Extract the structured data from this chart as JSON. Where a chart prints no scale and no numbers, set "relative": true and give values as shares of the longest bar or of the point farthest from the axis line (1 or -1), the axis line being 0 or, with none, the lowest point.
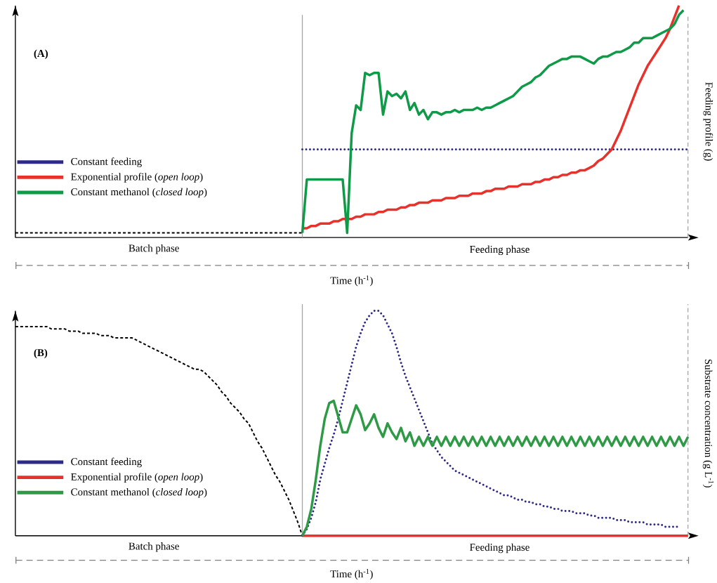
{
  "chart_data": [
    {
      "type": "line",
      "relative": true,
      "legend": "left",
      "xlabel": "Time (h$^{-1}$)",
      "ylabel": "Feeding profile (g)",
      "annotations": [
        "(A)",
        "Batch phase",
        "Feeding phase"
      ],
      "categories": [
        null,
        null,
        null,
        null,
        null,
        null,
        null,
        null,
        null,
        null,
        null,
        null,
        null,
        null,
        null,
        null,
        null,
        null,
        null,
        null,
        null,
        null,
        null,
        null,
        null,
        null,
        null,
        null,
        null,
        null,
        null,
        null,
        null,
        null,
        null,
        null,
        null,
        null,
        null,
        null,
        null,
        null,
        null,
        null,
        null,
        null,
        null,
        null,
        null,
        null,
        null,
        null,
        null,
        null,
        null,
        null,
        null,
        null,
        null,
        null,
        null,
        null,
        null,
        null,
        null,
        null,
        null,
        null,
        null,
        null,
        null,
        null,
        null,
        null,
        null,
        null,
        null,
        null,
        null,
        null,
        null,
        null,
        null,
        null,
        null,
        null,
        null,
        null,
        null,
        null,
        null,
        null,
        null,
        null,
        null,
        null,
        null,
        null,
        null,
        null,
        null,
        null,
        null,
        null,
        null,
        null,
        null,
        null,
        null,
        null,
        null,
        null,
        null,
        null,
        null,
        null,
        null,
        null,
        null,
        null,
        null,
        null,
        null,
        null,
        null,
        null,
        null,
        null,
        null,
        null,
        null,
        null,
        null,
        null,
        null,
        null,
        null,
        null,
        null,
        null,
        null,
        null,
        null,
        null,
        null,
        null,
        null,
        null,
        null,
        null,
        null
      ],
      "series": [
        {
          "color": "#000000",
          "line_style": "dashed",
          "values": [
            0.02,
            0.02,
            0.02,
            0.02,
            0.02,
            0.02,
            0.02,
            0.02,
            0.02,
            0.02,
            0.02,
            0.02,
            0.02,
            0.02,
            0.02,
            0.02,
            0.02,
            0.02,
            0.02,
            0.02,
            0.02,
            0.02,
            0.02,
            0.02,
            0.02,
            0.02,
            0.02,
            0.02,
            0.02,
            0.02,
            0.02,
            0.02,
            0.02,
            0.02,
            0.02,
            0.02,
            0.02,
            0.02,
            0.02,
            0.02,
            0.02,
            0.02,
            0.02,
            0.02,
            0.02,
            0.02,
            0.02,
            0.02,
            0.02,
            0.02,
            0.02,
            0.02,
            0.02,
            0.02,
            0.02,
            0.02,
            0.02,
            0.02,
            0.02,
            0.02,
            0.02,
            0.02,
            0.02,
            0.02,
            0.02,
            null,
            null,
            null,
            null,
            null,
            null,
            null,
            null,
            null,
            null,
            null,
            null,
            null,
            null,
            null,
            null,
            null,
            null,
            null,
            null,
            null,
            null,
            null,
            null,
            null,
            null,
            null,
            null,
            null,
            null,
            null,
            null,
            null,
            null,
            null,
            null,
            null,
            null,
            null,
            null,
            null,
            null,
            null,
            null,
            null,
            null,
            null,
            null,
            null,
            null,
            null,
            null,
            null,
            null,
            null,
            null,
            null,
            null,
            null,
            null,
            null,
            null,
            null,
            null,
            null,
            null,
            null,
            null,
            null,
            null,
            null,
            null,
            null,
            null,
            null,
            null,
            null,
            null,
            null,
            null,
            null,
            null,
            null,
            null,
            null,
            null
          ]
        },
        {
          "name": "Constant feeding",
          "color": "#2e2a88",
          "line_style": "dotted",
          "values": [
            null,
            null,
            null,
            null,
            null,
            null,
            null,
            null,
            null,
            null,
            null,
            null,
            null,
            null,
            null,
            null,
            null,
            null,
            null,
            null,
            null,
            null,
            null,
            null,
            null,
            null,
            null,
            null,
            null,
            null,
            null,
            null,
            null,
            null,
            null,
            null,
            null,
            null,
            null,
            null,
            null,
            null,
            null,
            null,
            null,
            null,
            null,
            null,
            null,
            null,
            null,
            null,
            null,
            null,
            null,
            null,
            null,
            null,
            null,
            null,
            null,
            null,
            null,
            null,
            0.38,
            0.38,
            0.38,
            0.38,
            0.38,
            0.38,
            0.38,
            0.38,
            0.38,
            0.38,
            0.38,
            0.38,
            0.38,
            0.38,
            0.38,
            0.38,
            0.38,
            0.38,
            0.38,
            0.38,
            0.38,
            0.38,
            0.38,
            0.38,
            0.38,
            0.38,
            0.38,
            0.38,
            0.38,
            0.38,
            0.38,
            0.38,
            0.38,
            0.38,
            0.38,
            0.38,
            0.38,
            0.38,
            0.38,
            0.38,
            0.38,
            0.38,
            0.38,
            0.38,
            0.38,
            0.38,
            0.38,
            0.38,
            0.38,
            0.38,
            0.38,
            0.38,
            0.38,
            0.38,
            0.38,
            0.38,
            0.38,
            0.38,
            0.38,
            0.38,
            0.38,
            0.38,
            0.38,
            0.38,
            0.38,
            0.38,
            0.38,
            0.38,
            0.38,
            0.38,
            0.38,
            0.38,
            0.38,
            0.38,
            0.38,
            0.38,
            0.38,
            0.38,
            0.38,
            0.38,
            0.38,
            0.38,
            0.38,
            0.38,
            0.38,
            0.38,
            0.38
          ]
        },
        {
          "name": "Exponential profile (*open loop*)",
          "color": "#e8312a",
          "line_style": "solid",
          "values": [
            null,
            null,
            null,
            null,
            null,
            null,
            null,
            null,
            null,
            null,
            null,
            null,
            null,
            null,
            null,
            null,
            null,
            null,
            null,
            null,
            null,
            null,
            null,
            null,
            null,
            null,
            null,
            null,
            null,
            null,
            null,
            null,
            null,
            null,
            null,
            null,
            null,
            null,
            null,
            null,
            null,
            null,
            null,
            null,
            null,
            null,
            null,
            null,
            null,
            null,
            null,
            null,
            null,
            null,
            null,
            null,
            null,
            null,
            null,
            null,
            null,
            null,
            null,
            null,
            0.04,
            0.04,
            0.05,
            0.05,
            0.06,
            0.06,
            0.06,
            0.07,
            0.07,
            0.08,
            0.08,
            0.08,
            0.09,
            0.09,
            0.1,
            0.1,
            0.1,
            0.11,
            0.11,
            0.12,
            0.12,
            0.12,
            0.13,
            0.13,
            0.14,
            0.14,
            0.15,
            0.15,
            0.15,
            0.16,
            0.16,
            0.16,
            0.17,
            0.17,
            0.17,
            0.18,
            0.18,
            0.18,
            0.19,
            0.19,
            0.19,
            0.2,
            0.2,
            0.21,
            0.21,
            0.21,
            0.22,
            0.22,
            0.22,
            0.23,
            0.23,
            0.23,
            0.24,
            0.24,
            0.25,
            0.25,
            0.26,
            0.26,
            0.27,
            0.27,
            0.28,
            0.28,
            0.29,
            0.29,
            0.3,
            0.31,
            0.33,
            0.34,
            0.36,
            0.38,
            0.42,
            0.46,
            0.51,
            0.56,
            0.61,
            0.66,
            0.7,
            0.74,
            0.77,
            0.8,
            0.83,
            0.86,
            0.9,
            0.95,
            1.0,
            null,
            null
          ]
        },
        {
          "name": "Constant methanol (*closed loop*)",
          "color": "#0f9a48",
          "line_style": "solid",
          "values": [
            null,
            null,
            null,
            null,
            null,
            null,
            null,
            null,
            null,
            null,
            null,
            null,
            null,
            null,
            null,
            null,
            null,
            null,
            null,
            null,
            null,
            null,
            null,
            null,
            null,
            null,
            null,
            null,
            null,
            null,
            null,
            null,
            null,
            null,
            null,
            null,
            null,
            null,
            null,
            null,
            null,
            null,
            null,
            null,
            null,
            null,
            null,
            null,
            null,
            null,
            null,
            null,
            null,
            null,
            null,
            null,
            null,
            null,
            null,
            null,
            null,
            null,
            null,
            null,
            0.02,
            0.25,
            0.25,
            0.25,
            0.25,
            0.25,
            0.25,
            0.25,
            0.25,
            0.25,
            0.02,
            0.45,
            0.57,
            0.55,
            0.71,
            0.7,
            0.71,
            0.71,
            0.53,
            0.63,
            0.61,
            0.62,
            0.6,
            0.63,
            0.55,
            0.58,
            0.53,
            0.55,
            0.51,
            0.54,
            0.54,
            0.53,
            0.54,
            0.54,
            0.55,
            0.54,
            0.55,
            0.55,
            0.55,
            0.56,
            0.55,
            0.56,
            0.56,
            0.57,
            0.58,
            0.59,
            0.6,
            0.61,
            0.63,
            0.65,
            0.66,
            0.67,
            0.69,
            0.7,
            0.72,
            0.74,
            0.75,
            0.76,
            0.77,
            0.77,
            0.78,
            0.78,
            0.78,
            0.77,
            0.76,
            0.75,
            0.77,
            0.78,
            0.78,
            0.79,
            0.8,
            0.8,
            0.81,
            0.82,
            0.84,
            0.84,
            0.86,
            0.86,
            0.86,
            0.87,
            0.88,
            0.89,
            0.9,
            0.92,
            0.96,
            0.98,
            null
          ]
        }
      ]
    },
    {
      "type": "line",
      "relative": true,
      "legend": "left",
      "xlabel": "Time (h$^{-1}$)",
      "ylabel": "Substrate concentration (g L$^{-1}$)",
      "annotations": [
        "(B)",
        "Batch phase",
        "Feeding phase"
      ],
      "categories": [
        null,
        null,
        null,
        null,
        null,
        null,
        null,
        null,
        null,
        null,
        null,
        null,
        null,
        null,
        null,
        null,
        null,
        null,
        null,
        null,
        null,
        null,
        null,
        null,
        null,
        null,
        null,
        null,
        null,
        null,
        null,
        null,
        null,
        null,
        null,
        null,
        null,
        null,
        null,
        null,
        null,
        null,
        null,
        null,
        null,
        null,
        null,
        null,
        null,
        null,
        null,
        null,
        null,
        null,
        null,
        null,
        null,
        null,
        null,
        null,
        null,
        null,
        null,
        null,
        null,
        null,
        null,
        null,
        null,
        null,
        null,
        null,
        null,
        null,
        null,
        null,
        null,
        null,
        null,
        null,
        null,
        null,
        null,
        null,
        null,
        null,
        null,
        null,
        null,
        null,
        null,
        null,
        null,
        null,
        null,
        null,
        null,
        null,
        null,
        null,
        null,
        null,
        null,
        null,
        null,
        null,
        null,
        null,
        null,
        null,
        null,
        null,
        null,
        null,
        null,
        null,
        null,
        null,
        null,
        null,
        null,
        null,
        null,
        null,
        null,
        null,
        null,
        null,
        null,
        null,
        null,
        null,
        null,
        null,
        null,
        null,
        null,
        null,
        null,
        null,
        null,
        null,
        null,
        null,
        null,
        null,
        null,
        null,
        null,
        null,
        null
      ],
      "series": [
        {
          "color": "#000000",
          "line_style": "dashed",
          "values": [
            0.93,
            0.93,
            0.93,
            0.93,
            0.93,
            0.93,
            0.93,
            0.93,
            0.92,
            0.92,
            0.92,
            0.92,
            0.91,
            0.91,
            0.91,
            0.9,
            0.9,
            0.9,
            0.9,
            0.89,
            0.89,
            0.89,
            0.88,
            0.88,
            0.88,
            0.88,
            0.88,
            0.87,
            0.86,
            0.85,
            0.84,
            0.83,
            0.82,
            0.81,
            0.8,
            0.79,
            0.78,
            0.77,
            0.76,
            0.75,
            0.74,
            0.74,
            0.73,
            0.71,
            0.69,
            0.67,
            0.64,
            0.62,
            0.59,
            0.57,
            0.55,
            0.52,
            0.5,
            0.46,
            0.42,
            0.39,
            0.35,
            0.31,
            0.27,
            0.24,
            0.2,
            0.16,
            0.11,
            0.06,
            0,
            null,
            null,
            null,
            null,
            null,
            null,
            null,
            null,
            null,
            null,
            null,
            null,
            null,
            null,
            null,
            null,
            null,
            null,
            null,
            null,
            null,
            null,
            null,
            null,
            null,
            null,
            null,
            null,
            null,
            null,
            null,
            null,
            null,
            null,
            null,
            null,
            null,
            null,
            null,
            null,
            null,
            null,
            null,
            null,
            null,
            null,
            null,
            null,
            null,
            null,
            null,
            null,
            null,
            null,
            null,
            null,
            null,
            null,
            null,
            null,
            null,
            null,
            null,
            null,
            null,
            null,
            null,
            null,
            null,
            null,
            null,
            null,
            null,
            null,
            null,
            null,
            null,
            null,
            null,
            null,
            null,
            null,
            null,
            null,
            null,
            null
          ]
        },
        {
          "name": "Constant feeding",
          "color": "#2e2a88",
          "line_style": "dotted",
          "values": [
            null,
            null,
            null,
            null,
            null,
            null,
            null,
            null,
            null,
            null,
            null,
            null,
            null,
            null,
            null,
            null,
            null,
            null,
            null,
            null,
            null,
            null,
            null,
            null,
            null,
            null,
            null,
            null,
            null,
            null,
            null,
            null,
            null,
            null,
            null,
            null,
            null,
            null,
            null,
            null,
            null,
            null,
            null,
            null,
            null,
            null,
            null,
            null,
            null,
            null,
            null,
            null,
            null,
            null,
            null,
            null,
            null,
            null,
            null,
            null,
            null,
            null,
            null,
            null,
            0,
            0.03,
            0.08,
            0.15,
            0.25,
            0.32,
            0.39,
            0.45,
            0.52,
            0.6,
            0.68,
            0.76,
            0.84,
            0.9,
            0.95,
            0.98,
            1.0,
            1.0,
            0.98,
            0.94,
            0.9,
            0.84,
            0.77,
            0.71,
            0.66,
            0.61,
            0.56,
            0.51,
            0.46,
            0.41,
            0.38,
            0.35,
            0.33,
            0.31,
            0.29,
            0.28,
            0.27,
            0.26,
            0.25,
            0.24,
            0.23,
            0.22,
            0.21,
            0.2,
            0.19,
            0.18,
            0.18,
            0.17,
            0.16,
            0.16,
            0.15,
            0.15,
            0.14,
            0.14,
            0.13,
            0.13,
            0.12,
            0.12,
            0.11,
            0.11,
            0.11,
            0.1,
            0.1,
            0.1,
            0.09,
            0.09,
            0.08,
            0.08,
            0.08,
            0.08,
            0.07,
            0.07,
            0.07,
            0.06,
            0.06,
            0.06,
            0.06,
            0.05,
            0.05,
            0.05,
            0.05,
            0.04,
            0.04,
            0.04,
            0.04,
            null,
            null
          ]
        },
        {
          "name": "Exponential profile (*open loop*)",
          "color": "#e8312a",
          "line_style": "solid",
          "values": [
            null,
            null,
            null,
            null,
            null,
            null,
            null,
            null,
            null,
            null,
            null,
            null,
            null,
            null,
            null,
            null,
            null,
            null,
            null,
            null,
            null,
            null,
            null,
            null,
            null,
            null,
            null,
            null,
            null,
            null,
            null,
            null,
            null,
            null,
            null,
            null,
            null,
            null,
            null,
            null,
            null,
            null,
            null,
            null,
            null,
            null,
            null,
            null,
            null,
            null,
            null,
            null,
            null,
            null,
            null,
            null,
            null,
            null,
            null,
            null,
            null,
            null,
            null,
            null,
            0,
            0,
            0,
            0,
            0,
            0,
            0,
            0,
            0,
            0,
            0,
            0,
            0,
            0,
            0,
            0,
            0,
            0,
            0,
            0,
            0,
            0,
            0,
            0,
            0,
            0,
            0,
            0,
            0,
            0,
            0,
            0,
            0,
            0,
            0,
            0,
            0,
            0,
            0,
            0,
            0,
            0,
            0,
            0,
            0,
            0,
            0,
            0,
            0,
            0,
            0,
            0,
            0,
            0,
            0,
            0,
            0,
            0,
            0,
            0,
            0,
            0,
            0,
            0,
            0,
            0,
            0,
            0,
            0,
            0,
            0,
            0,
            0,
            0,
            0,
            0,
            0,
            0,
            0,
            0,
            0,
            0,
            0,
            0,
            0,
            0,
            0
          ]
        },
        {
          "name": "Constant methanol (*closed loop*)",
          "color": "#2e9a45",
          "line_style": "solid",
          "values": [
            null,
            null,
            null,
            null,
            null,
            null,
            null,
            null,
            null,
            null,
            null,
            null,
            null,
            null,
            null,
            null,
            null,
            null,
            null,
            null,
            null,
            null,
            null,
            null,
            null,
            null,
            null,
            null,
            null,
            null,
            null,
            null,
            null,
            null,
            null,
            null,
            null,
            null,
            null,
            null,
            null,
            null,
            null,
            null,
            null,
            null,
            null,
            null,
            null,
            null,
            null,
            null,
            null,
            null,
            null,
            null,
            null,
            null,
            null,
            null,
            null,
            null,
            null,
            null,
            0,
            0.04,
            0.12,
            0.25,
            0.4,
            0.52,
            0.59,
            0.6,
            0.53,
            0.46,
            0.46,
            0.52,
            0.58,
            0.54,
            0.47,
            0.5,
            0.54,
            0.48,
            0.44,
            0.5,
            0.46,
            0.43,
            0.48,
            0.42,
            0.46,
            0.4,
            0.44,
            0.4,
            0.44,
            0.4,
            0.44,
            0.4,
            0.44,
            0.4,
            0.44,
            0.4,
            0.44,
            0.4,
            0.44,
            0.4,
            0.44,
            0.4,
            0.44,
            0.4,
            0.44,
            0.4,
            0.44,
            0.4,
            0.44,
            0.4,
            0.44,
            0.4,
            0.44,
            0.4,
            0.44,
            0.4,
            0.44,
            0.4,
            0.44,
            0.4,
            0.44,
            0.4,
            0.44,
            0.4,
            0.44,
            0.4,
            0.44,
            0.4,
            0.44,
            0.4,
            0.44,
            0.4,
            0.44,
            0.4,
            0.44,
            0.4,
            0.44,
            0.4,
            0.44,
            0.4,
            0.44,
            0.4,
            0.44,
            0.4,
            0.44,
            0.4,
            0.44
          ]
        }
      ]
    }
  ]
}
